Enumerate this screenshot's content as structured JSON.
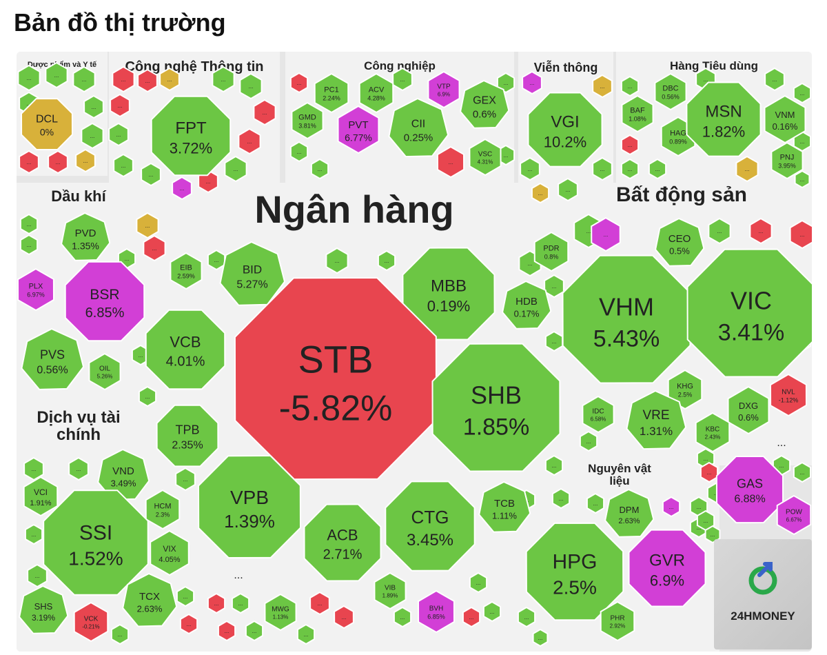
{
  "title": "Bản đồ thị trường",
  "colors": {
    "up": "#6cc644",
    "down": "#e8454f",
    "ceiling": "#d23fd6",
    "flat": "#d8b13a",
    "frame": "#f0f0f0"
  },
  "sectors": [
    {
      "name": "Dược phẩm và Y tế"
    },
    {
      "name": "Công nghệ Thông tin"
    },
    {
      "name": "Công nghiệp"
    },
    {
      "name": "Viễn thông"
    },
    {
      "name": "Hàng Tiêu dùng"
    },
    {
      "name": "Dầu khí"
    },
    {
      "name": "Ngân hàng"
    },
    {
      "name": "Bất động sản"
    },
    {
      "name": "Dịch vụ tài chính"
    },
    {
      "name": "Nguyên vật liệu"
    }
  ],
  "logo_text": "24HMONEY",
  "more_marker": "...",
  "chart_data": {
    "type": "treemap",
    "title": "Bản đồ thị trường",
    "items": [
      {
        "sector": "Dược phẩm và Y tế",
        "ticker": "DCL",
        "change": "0%",
        "status": "flat"
      },
      {
        "sector": "Công nghệ Thông tin",
        "ticker": "FPT",
        "change": "3.72%",
        "status": "up"
      },
      {
        "sector": "Công nghiệp",
        "ticker": "PC1",
        "change": "2.24%",
        "status": "up"
      },
      {
        "sector": "Công nghiệp",
        "ticker": "ACV",
        "change": "4.28%",
        "status": "up"
      },
      {
        "sector": "Công nghiệp",
        "ticker": "VTP",
        "change": "6.9%",
        "status": "ceiling"
      },
      {
        "sector": "Công nghiệp",
        "ticker": "GEX",
        "change": "0.6%",
        "status": "up"
      },
      {
        "sector": "Công nghiệp",
        "ticker": "GMD",
        "change": "3.81%",
        "status": "up"
      },
      {
        "sector": "Công nghiệp",
        "ticker": "PVT",
        "change": "6.77%",
        "status": "ceiling"
      },
      {
        "sector": "Công nghiệp",
        "ticker": "CII",
        "change": "0.25%",
        "status": "up"
      },
      {
        "sector": "Công nghiệp",
        "ticker": "VSC",
        "change": "4.31%",
        "status": "up"
      },
      {
        "sector": "Viễn thông",
        "ticker": "VGI",
        "change": "10.2%",
        "status": "up"
      },
      {
        "sector": "Hàng Tiêu dùng",
        "ticker": "DBC",
        "change": "0.56%",
        "status": "up"
      },
      {
        "sector": "Hàng Tiêu dùng",
        "ticker": "BAF",
        "change": "1.08%",
        "status": "up"
      },
      {
        "sector": "Hàng Tiêu dùng",
        "ticker": "HAG",
        "change": "0.89%",
        "status": "up"
      },
      {
        "sector": "Hàng Tiêu dùng",
        "ticker": "MSN",
        "change": "1.82%",
        "status": "up"
      },
      {
        "sector": "Hàng Tiêu dùng",
        "ticker": "VNM",
        "change": "0.16%",
        "status": "up"
      },
      {
        "sector": "Hàng Tiêu dùng",
        "ticker": "PNJ",
        "change": "3.95%",
        "status": "up"
      },
      {
        "sector": "Dầu khí",
        "ticker": "PVD",
        "change": "1.35%",
        "status": "up"
      },
      {
        "sector": "Dầu khí",
        "ticker": "PLX",
        "change": "6.97%",
        "status": "ceiling"
      },
      {
        "sector": "Dầu khí",
        "ticker": "BSR",
        "change": "6.85%",
        "status": "ceiling"
      },
      {
        "sector": "Dầu khí",
        "ticker": "PVS",
        "change": "0.56%",
        "status": "up"
      },
      {
        "sector": "Dầu khí",
        "ticker": "OIL",
        "change": "5.26%",
        "status": "up"
      },
      {
        "sector": "Ngân hàng",
        "ticker": "EIB",
        "change": "2.59%",
        "status": "up"
      },
      {
        "sector": "Ngân hàng",
        "ticker": "BID",
        "change": "5.27%",
        "status": "up"
      },
      {
        "sector": "Ngân hàng",
        "ticker": "MBB",
        "change": "0.19%",
        "status": "up"
      },
      {
        "sector": "Ngân hàng",
        "ticker": "HDB",
        "change": "0.17%",
        "status": "up"
      },
      {
        "sector": "Ngân hàng",
        "ticker": "VCB",
        "change": "4.01%",
        "status": "up"
      },
      {
        "sector": "Ngân hàng",
        "ticker": "STB",
        "change": "-5.82%",
        "status": "down"
      },
      {
        "sector": "Ngân hàng",
        "ticker": "SHB",
        "change": "1.85%",
        "status": "up"
      },
      {
        "sector": "Ngân hàng",
        "ticker": "TPB",
        "change": "2.35%",
        "status": "up"
      },
      {
        "sector": "Ngân hàng",
        "ticker": "VPB",
        "change": "1.39%",
        "status": "up"
      },
      {
        "sector": "Ngân hàng",
        "ticker": "ACB",
        "change": "2.71%",
        "status": "up"
      },
      {
        "sector": "Ngân hàng",
        "ticker": "CTG",
        "change": "3.45%",
        "status": "up"
      },
      {
        "sector": "Ngân hàng",
        "ticker": "TCB",
        "change": "1.11%",
        "status": "up"
      },
      {
        "sector": "Ngân hàng",
        "ticker": "VIB",
        "change": "1.89%",
        "status": "up"
      },
      {
        "sector": "Bất động sản",
        "ticker": "PDR",
        "change": "0.8%",
        "status": "up"
      },
      {
        "sector": "Bất động sản",
        "ticker": "CEO",
        "change": "0.5%",
        "status": "up"
      },
      {
        "sector": "Bất động sản",
        "ticker": "VHM",
        "change": "5.43%",
        "status": "up"
      },
      {
        "sector": "Bất động sản",
        "ticker": "VIC",
        "change": "3.41%",
        "status": "up"
      },
      {
        "sector": "Bất động sản",
        "ticker": "KHG",
        "change": "2.5%",
        "status": "up"
      },
      {
        "sector": "Bất động sản",
        "ticker": "IDC",
        "change": "6.58%",
        "status": "up"
      },
      {
        "sector": "Bất động sản",
        "ticker": "VRE",
        "change": "1.31%",
        "status": "up"
      },
      {
        "sector": "Bất động sản",
        "ticker": "DXG",
        "change": "0.6%",
        "status": "up"
      },
      {
        "sector": "Bất động sản",
        "ticker": "NVL",
        "change": "-1.12%",
        "status": "down"
      },
      {
        "sector": "Bất động sản",
        "ticker": "KBC",
        "change": "2.43%",
        "status": "up"
      },
      {
        "sector": "Dịch vụ tài chính",
        "ticker": "VND",
        "change": "3.49%",
        "status": "up"
      },
      {
        "sector": "Dịch vụ tài chính",
        "ticker": "VCI",
        "change": "1.91%",
        "status": "up"
      },
      {
        "sector": "Dịch vụ tài chính",
        "ticker": "HCM",
        "change": "2.3%",
        "status": "up"
      },
      {
        "sector": "Dịch vụ tài chính",
        "ticker": "SSI",
        "change": "1.52%",
        "status": "up"
      },
      {
        "sector": "Dịch vụ tài chính",
        "ticker": "VIX",
        "change": "4.05%",
        "status": "up"
      },
      {
        "sector": "Dịch vụ tài chính",
        "ticker": "SHS",
        "change": "3.19%",
        "status": "up"
      },
      {
        "sector": "Dịch vụ tài chính",
        "ticker": "TCX",
        "change": "2.63%",
        "status": "up"
      },
      {
        "sector": "Dịch vụ tài chính",
        "ticker": "VCK",
        "change": "-0.21%",
        "status": "down"
      },
      {
        "sector": "",
        "ticker": "MWG",
        "change": "1.13%",
        "status": "up"
      },
      {
        "sector": "",
        "ticker": "BVH",
        "change": "6.85%",
        "status": "ceiling"
      },
      {
        "sector": "",
        "ticker": "GAS",
        "change": "6.88%",
        "status": "ceiling"
      },
      {
        "sector": "",
        "ticker": "POW",
        "change": "6.67%",
        "status": "ceiling"
      },
      {
        "sector": "Nguyên vật liệu",
        "ticker": "DPM",
        "change": "2.63%",
        "status": "up"
      },
      {
        "sector": "Nguyên vật liệu",
        "ticker": "HPG",
        "change": "2.5%",
        "status": "up"
      },
      {
        "sector": "Nguyên vật liệu",
        "ticker": "GVR",
        "change": "6.9%",
        "status": "ceiling"
      },
      {
        "sector": "Nguyên vật liệu",
        "ticker": "PHR",
        "change": "2.92%",
        "status": "up"
      }
    ]
  }
}
